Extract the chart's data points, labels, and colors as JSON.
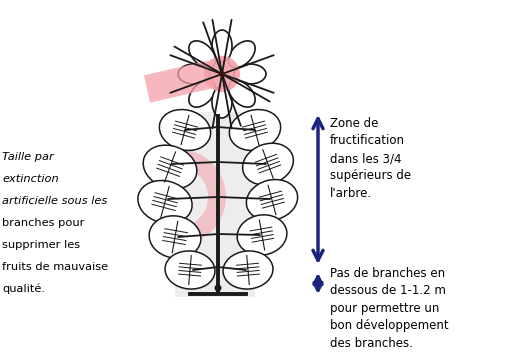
{
  "bg_color": "#ffffff",
  "arrow_color": "#1a237e",
  "pink_color": "#f4a0a8",
  "pink_fill": "#f8b8bc",
  "tree_color": "#1a1a1a",
  "gray_rect_color": "#cccccc",
  "right_text_top": "Zone de\nfructification\ndans les 3/4\nsupérieurs de\nl'arbre.",
  "right_text_bottom": "Pas de branches en\ndessous de 1-1.2 m\npour permettre un\nbon développement\ndes branches.",
  "left_texts": [
    [
      "Taille par",
      true
    ],
    [
      "extinction",
      true
    ],
    [
      "artificielle sous les",
      true
    ],
    [
      "branches pour",
      false
    ],
    [
      "supprimer les",
      false
    ],
    [
      "fruits de mauvaise",
      false
    ],
    [
      "qualité.",
      false
    ]
  ]
}
